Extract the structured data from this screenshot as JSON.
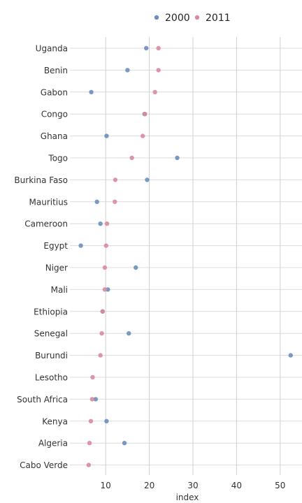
{
  "chart_data": {
    "type": "scatter",
    "title": "",
    "xlabel": "index",
    "ylabel": "",
    "xlim": [
      1.8,
      55
    ],
    "xticks": [
      10,
      20,
      30,
      40,
      50
    ],
    "grid": true,
    "legend_position": "top",
    "categories": [
      "Uganda",
      "Benin",
      "Gabon",
      "Congo",
      "Ghana",
      "Togo",
      "Burkina Faso",
      "Mauritius",
      "Cameroon",
      "Egypt",
      "Niger",
      "Mali",
      "Ethiopia",
      "Senegal",
      "Burundi",
      "Lesotho",
      "South Africa",
      "Kenya",
      "Algeria",
      "Cabo Verde"
    ],
    "series": [
      {
        "name": "2000",
        "color": "#6a8fbd",
        "values": [
          19.3,
          15.0,
          6.7,
          18.9,
          10.2,
          26.4,
          19.5,
          8.0,
          8.8,
          4.3,
          16.9,
          10.5,
          9.3,
          15.3,
          52.4,
          null,
          7.7,
          10.2,
          14.3,
          null
        ]
      },
      {
        "name": "2011",
        "color": "#d98aa0",
        "values": [
          22.1,
          22.1,
          21.3,
          19.0,
          18.5,
          16.0,
          12.2,
          12.1,
          10.3,
          10.1,
          9.8,
          9.8,
          9.3,
          9.1,
          8.8,
          7.0,
          6.9,
          6.6,
          6.3,
          6.1
        ]
      }
    ]
  }
}
